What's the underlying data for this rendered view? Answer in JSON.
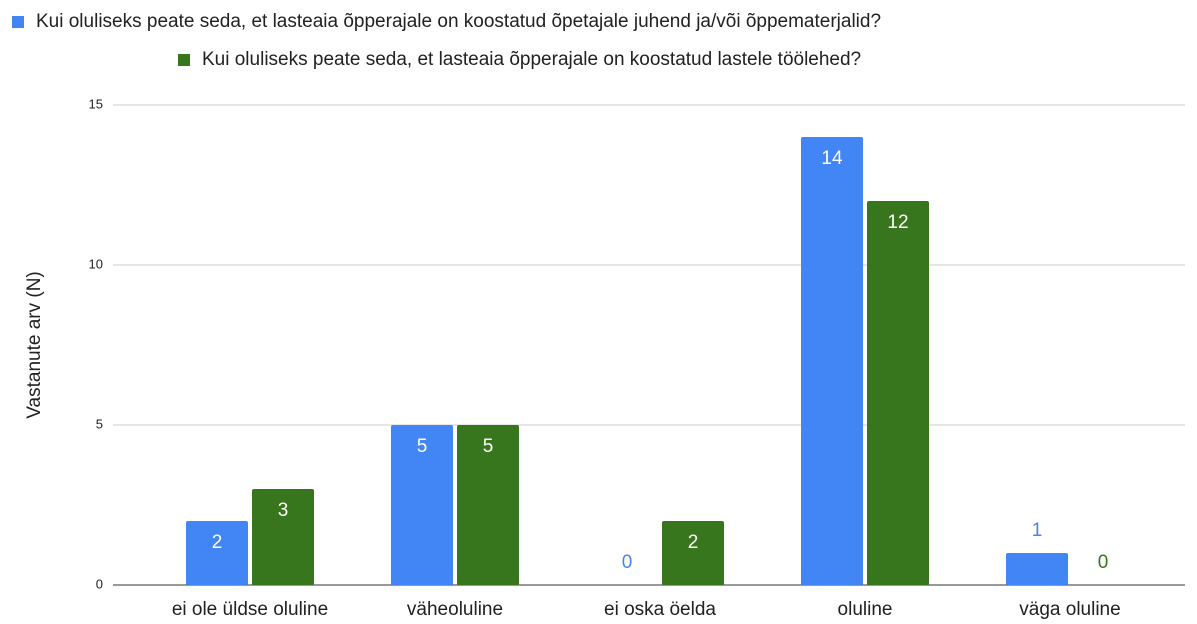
{
  "chart_data": {
    "type": "bar",
    "categories": [
      "ei ole üldse oluline",
      "väheoluline",
      "ei oska öelda",
      "oluline",
      "väga oluline"
    ],
    "series": [
      {
        "name": "Kui oluliseks peate seda, et lasteaia õpperajale on koostatud õpetajale juhend ja/või õppematerjalid?",
        "color": "#4285f4",
        "values": [
          2,
          5,
          0,
          14,
          1
        ]
      },
      {
        "name": "Kui oluliseks peate seda, et lasteaia õpperajale on koostatud lastele töölehed?",
        "color": "#38761d",
        "values": [
          3,
          5,
          2,
          12,
          0
        ]
      }
    ],
    "ylabel": "Vastanute arv (N)",
    "ylim": [
      0,
      15
    ],
    "yticks": [
      0,
      5,
      10,
      15
    ],
    "grid": true,
    "legend": "top"
  }
}
